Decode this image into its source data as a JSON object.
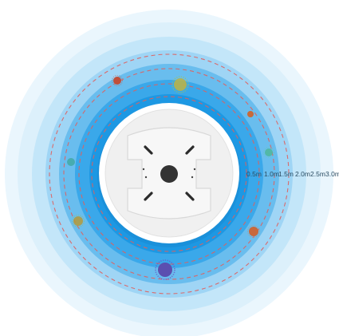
{
  "figure": {
    "distance_labels": [
      "0.5m",
      "1.0m",
      "1.5m",
      "2.0m",
      "2.5m",
      "3.0m"
    ],
    "colors": {
      "ring_inner": "#1e9be6",
      "ring_mid": "#5bb7ee",
      "ring_light": "#a9dcf7",
      "ring_faint": "#dff2fc",
      "dashed_circle": "#e0605e",
      "device_face": "#f2f2f2",
      "device_rim": "#ffffff",
      "center_dot": "#333333"
    },
    "particles": [
      {
        "icon": "virus-particle-icon",
        "color": "#c0503a"
      },
      {
        "icon": "virus-particle-icon",
        "color": "#b7b24a"
      },
      {
        "icon": "virus-particle-icon",
        "color": "#c76a3a"
      },
      {
        "icon": "virus-particle-icon",
        "color": "#4fb79a"
      },
      {
        "icon": "virus-particle-icon",
        "color": "#3fa7a0"
      },
      {
        "icon": "virus-particle-icon",
        "color": "#b59a3a"
      },
      {
        "icon": "virus-particle-icon",
        "color": "#c8683c"
      },
      {
        "icon": "virus-particle-icon",
        "color": "#5b4fb0"
      }
    ]
  }
}
